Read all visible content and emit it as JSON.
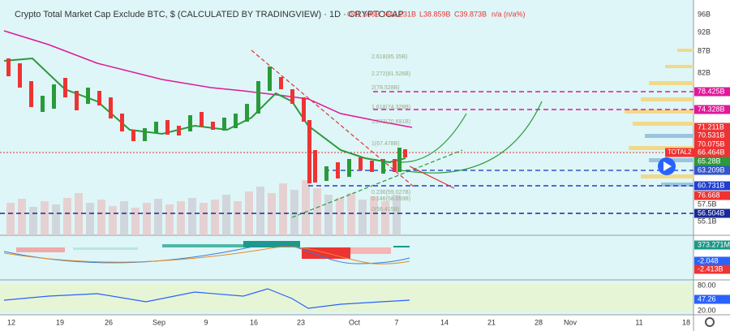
{
  "header": {
    "title": "Crypto Total Market Cap Exclude BTC, $ (CALCULATED BY TRADINGVIEW) · 1D · CRYPTOCAP",
    "open": "O41.506B",
    "high": "H42.231B",
    "low": "L38.859B",
    "close": "C39.873B",
    "change": "n/a (n/a%)"
  },
  "price_axis": [
    "96B",
    "92B",
    "87B",
    "82B",
    "78.425B",
    "74.328B",
    "71.211B",
    "70.531B",
    "70.075B",
    "66.464B",
    "65.28B",
    "63.209B",
    "60.731B",
    "76.668",
    "57.5B",
    "56.504B",
    "55.1B"
  ],
  "symbol_tag": "TOTAL2",
  "indicator_axis": [
    "373.271M",
    "-2.048",
    "-2.413B"
  ],
  "rsi_axis": [
    "80.00",
    "47.26",
    "20.00"
  ],
  "time_axis": [
    "12",
    "19",
    "26",
    "Sep",
    "9",
    "16",
    "23",
    "Oct",
    "7",
    "14",
    "21",
    "28",
    "Nov",
    "11",
    "18"
  ],
  "fib_labels": [
    "2.618(85.35B)",
    "2.272(81.526B)",
    "2(78.528B)",
    "1.618(74.328B)",
    "1.272(70.691B)",
    "1(67.478B)",
    "0.236(59.027B)",
    "0.146(58.059B)",
    "0(56.415B)"
  ]
}
